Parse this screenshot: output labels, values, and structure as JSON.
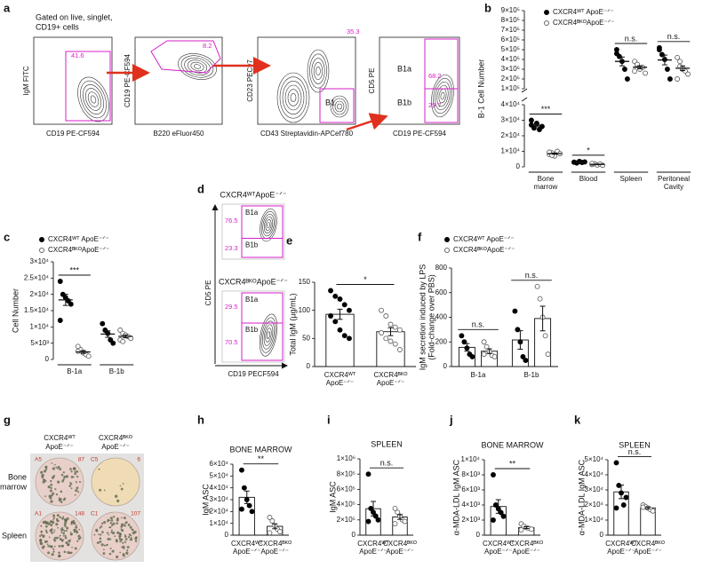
{
  "panel_labels": [
    "a",
    "b",
    "c",
    "d",
    "e",
    "f",
    "g",
    "h",
    "i",
    "j",
    "k"
  ],
  "flow_gating": {
    "note": [
      "Gated on live, singlet,",
      "CD19+ cells"
    ],
    "plots": [
      {
        "y_label": "IgM FITC",
        "x_label": "CD19 PE-CF594",
        "gates": [
          "41.6"
        ]
      },
      {
        "y_label": "CD19 PE-CF594",
        "x_label": "B220 eFluor450",
        "gates": [
          "8.2"
        ]
      },
      {
        "y_label": "CD23 PECy7",
        "x_label": "CD43 Streptavidin-APCef780",
        "gates": [
          "35.3",
          "B1"
        ]
      },
      {
        "y_label": "CD5 PE",
        "x_label": "CD19 PE-CF594",
        "gates": [
          "B1a",
          "68.2",
          "B1b",
          "29.7"
        ]
      }
    ]
  },
  "flow_cd5": {
    "y_label": "CD5 PE",
    "x_label": "CD19 PECF594",
    "plots": [
      {
        "title": "CXCR4ᵂᵀApoE⁻ᐟ⁻",
        "gates": [
          "B1a",
          "76.5",
          "B1b",
          "23.3"
        ]
      },
      {
        "title": "CXCR4ᴮᴷᴼApoE⁻ᐟ⁻",
        "gates": [
          "B1a",
          "29.5",
          "B1b",
          "70.5"
        ]
      }
    ]
  },
  "elispot": {
    "columns": [
      [
        "CXCR4ᵂᵀ",
        "ApoE⁻ᐟ⁻"
      ],
      [
        "CXCR4ᴮᴷᴼ",
        "ApoE⁻ᐟ⁻"
      ]
    ],
    "rows": [
      [
        "Bone",
        "marrow"
      ],
      [
        "Spleen"
      ]
    ],
    "wells": [
      [
        [
          "A5",
          "87"
        ],
        [
          "C5",
          "6"
        ]
      ],
      [
        [
          "A1",
          "148"
        ],
        [
          "C1",
          "107"
        ]
      ]
    ]
  },
  "chart_data": [
    {
      "type": "dotplot",
      "y_label": "B-1 Cell Number",
      "categories": [
        [
          "Bone",
          "marrow"
        ],
        [
          "Blood"
        ],
        [
          "Spleen"
        ],
        [
          "Peritoneal",
          "Cavity"
        ]
      ],
      "ylim": [
        0,
        40000
      ],
      "yticks": [
        0,
        {
          "value": 10000,
          "label": "1×10⁴"
        },
        {
          "value": 20000,
          "label": "2×10⁴"
        },
        {
          "value": 30000,
          "label": "3×10⁴"
        },
        {
          "value": 40000,
          "label": "4×10⁴"
        }
      ],
      "ylim_upper": [
        100000,
        900000
      ],
      "yticks_upper": [
        {
          "value": 100000,
          "label": "1×10⁵"
        },
        {
          "value": 200000,
          "label": "2×10⁵"
        },
        {
          "value": 300000,
          "label": "3×10⁵"
        },
        {
          "value": 400000,
          "label": "4×10⁵"
        },
        {
          "value": 500000,
          "label": "5×10⁵"
        },
        {
          "value": 600000,
          "label": "6×10⁵"
        },
        {
          "value": 700000,
          "label": "7×10⁵"
        },
        {
          "value": 800000,
          "label": "8×10⁵"
        },
        {
          "value": 900000,
          "label": "9×10⁵"
        }
      ],
      "legend": true,
      "series": [
        {
          "name": "CXCR4ᵂᵀ ApoE⁻ᐟ⁻",
          "marker": "filled",
          "values": [
            [
              27000,
              25000,
              28000,
              24000,
              26000,
              30000
            ],
            [
              3000,
              2500,
              3500,
              2800,
              3200
            ],
            [
              500000,
              430000,
              380000,
              300000,
              200000,
              460000
            ],
            [
              500000,
              450000,
              400000,
              300000,
              200000,
              520000
            ]
          ],
          "mean": [
            26700,
            3000,
            380000,
            395000
          ],
          "sem": [
            900,
            170,
            45000,
            50000
          ]
        },
        {
          "name": "CXCR4ᴮᴷᴼApoE⁻ᐟ⁻",
          "marker": "open",
          "values": [
            [
              8000,
              9000,
              7000,
              10000,
              8500,
              9500,
              7500
            ],
            [
              1500,
              2000,
              1200,
              1800,
              1000,
              2200
            ],
            [
              380000,
              340000,
              300000,
              320000,
              260000,
              280000,
              350000
            ],
            [
              420000,
              380000,
              300000,
              280000,
              250000,
              200000,
              330000,
              310000
            ]
          ],
          "mean": [
            8500,
            1600,
            320000,
            310000
          ],
          "sem": [
            400,
            190,
            16000,
            24000
          ]
        }
      ],
      "significance": [
        {
          "label": "***",
          "category": 0
        },
        {
          "label": "*",
          "category": 1
        },
        {
          "label": "n.s.",
          "category": 2
        },
        {
          "label": "n.s.",
          "category": 3
        }
      ]
    },
    {
      "type": "dotplot",
      "y_label": "Cell Number",
      "categories": [
        [
          "B-1a"
        ],
        [
          "B-1b"
        ]
      ],
      "ylim": [
        0,
        30000
      ],
      "yticks": [
        0,
        {
          "value": 5000,
          "label": "5×10³"
        },
        {
          "value": 10000,
          "label": "1×10⁴"
        },
        {
          "value": 15000,
          "label": "1.5×10⁴"
        },
        {
          "value": 20000,
          "label": "2×10⁴"
        },
        {
          "value": 25000,
          "label": "2.5×10⁴"
        },
        {
          "value": 30000,
          "label": "3×10⁴"
        }
      ],
      "legend": true,
      "series": [
        {
          "name": "CXCR4ᵂᵀ ApoE⁻ᐟ⁻",
          "marker": "filled",
          "values": [
            [
              24000,
              20000,
              19000,
              18000,
              17000,
              12000
            ],
            [
              11000,
              9000,
              8000,
              6000,
              5000
            ]
          ],
          "mean": [
            18300,
            7800
          ],
          "sem": [
            1700,
            1000
          ]
        },
        {
          "name": "CXCR4ᴮᴷᴼApoE⁻ᐟ⁻",
          "marker": "open",
          "values": [
            [
              4000,
              3000,
              2000,
              1500,
              1000,
              2500
            ],
            [
              9000,
              8000,
              7500,
              7000,
              6500,
              6000,
              5500
            ]
          ],
          "mean": [
            2300,
            7100
          ],
          "sem": [
            450,
            450
          ]
        }
      ],
      "significance": [
        {
          "label": "***",
          "category": 0
        }
      ]
    },
    {
      "type": "bar",
      "y_label": "Total IgM (µg/mL)",
      "categories": [
        [
          "CXCR4ᵂᵀ",
          "ApoE⁻ᐟ⁻"
        ],
        [
          "CXCR4ᴮᴷᴼ",
          "ApoE⁻ᐟ⁻"
        ]
      ],
      "ylim": [
        0,
        150
      ],
      "yticks": [
        0,
        50,
        100,
        150
      ],
      "series": [
        {
          "marker": [
            "filled",
            "open"
          ],
          "values": [
            [
              135,
              125,
              120,
              110,
              100,
              90,
              80,
              65,
              55,
              50
            ],
            [
              100,
              90,
              75,
              70,
              65,
              60,
              50,
              45,
              40,
              30
            ]
          ],
          "mean": [
            93,
            62
          ],
          "sem": [
            9,
            7
          ]
        }
      ],
      "significance": [
        {
          "label": "*"
        }
      ]
    },
    {
      "type": "bar",
      "y_label": [
        "IgM secretion induced by LPS",
        "(Fold-change over PBS)"
      ],
      "categories": [
        [
          "B-1a"
        ],
        [
          "B-1b"
        ]
      ],
      "ylim": [
        0,
        800
      ],
      "yticks": [
        0,
        200,
        400,
        600,
        800
      ],
      "legend": true,
      "series": [
        {
          "name": "CXCR4ᵂᵀ ApoE⁻ᐟ⁻",
          "marker": "filled",
          "values": [
            [
              250,
              200,
              150,
              100,
              80
            ],
            [
              450,
              300,
              200,
              80,
              50
            ]
          ],
          "mean": [
            156,
            216
          ],
          "sem": [
            31,
            75
          ]
        },
        {
          "name": "CXCR4ᴮᴷᴼApoE⁻ᐟ⁻",
          "marker": "open",
          "values": [
            [
              200,
              160,
              120,
              90,
              80,
              100
            ],
            [
              650,
              550,
              400,
              250,
              100
            ]
          ],
          "mean": [
            125,
            390
          ],
          "sem": [
            19,
            100
          ]
        }
      ],
      "significance": [
        {
          "label": "n.s.",
          "category": 0
        },
        {
          "label": "n.s.",
          "category": 1
        }
      ]
    },
    {
      "type": "bar",
      "title": "BONE MARROW",
      "y_label": "IgM ASC",
      "categories": [
        [
          "CXCR4ᵂᵀ",
          "ApoE⁻ᐟ⁻"
        ],
        [
          "CXCR4ᴮᴷᴼ",
          "ApoE⁻ᐟ⁻"
        ]
      ],
      "ylim": [
        0,
        60000
      ],
      "yticks": [
        0,
        {
          "value": 10000,
          "label": "1×10⁴"
        },
        {
          "value": 20000,
          "label": "2×10⁴"
        },
        {
          "value": 30000,
          "label": "3×10⁴"
        },
        {
          "value": 40000,
          "label": "4×10⁴"
        },
        {
          "value": 50000,
          "label": "5×10⁴"
        },
        {
          "value": 60000,
          "label": "6×10⁴"
        }
      ],
      "series": [
        {
          "marker": [
            "filled",
            "open"
          ],
          "values": [
            [
              55000,
              40000,
              30000,
              25000,
              20000,
              22000
            ],
            [
              15000,
              12000,
              8000,
              5000,
              3000,
              2000
            ]
          ],
          "mean": [
            32000,
            7500
          ],
          "sem": [
            5300,
            2100
          ]
        }
      ],
      "significance": [
        {
          "label": "**"
        }
      ]
    },
    {
      "type": "bar",
      "title": "SPLEEN",
      "y_label": "IgM ASC",
      "categories": [
        [
          "CXCR4ᵂᵀ",
          "ApoE⁻ᐟ⁻"
        ],
        [
          "CXCR4ᴮᴷᴼ",
          "ApoE⁻ᐟ⁻"
        ]
      ],
      "ylim": [
        0,
        1000000
      ],
      "yticks": [
        0,
        {
          "value": 200000,
          "label": "2×10⁵"
        },
        {
          "value": 400000,
          "label": "4×10⁵"
        },
        {
          "value": 600000,
          "label": "6×10⁵"
        },
        {
          "value": 800000,
          "label": "8×10⁵"
        },
        {
          "value": 1000000,
          "label": "1×10⁶"
        }
      ],
      "series": [
        {
          "marker": [
            "filled",
            "open"
          ],
          "values": [
            [
              800000,
              350000,
              300000,
              250000,
              200000,
              180000
            ],
            [
              350000,
              300000,
              250000,
              200000,
              180000,
              150000
            ]
          ],
          "mean": [
            347000,
            238000
          ],
          "sem": [
            95000,
            31000
          ]
        }
      ],
      "significance": [
        {
          "label": "n.s."
        }
      ]
    },
    {
      "type": "bar",
      "title": "BONE MARROW",
      "y_label": "α-MDA-LDL IgM ASC",
      "categories": [
        [
          "CXCR4ᵂᵀ",
          "ApoE⁻ᐟ⁻"
        ],
        [
          "CXCR4ᴮᴷᴼ",
          "ApoE⁻ᐟ⁻"
        ]
      ],
      "ylim": [
        0,
        10000
      ],
      "yticks": [
        0,
        {
          "value": 2000,
          "label": "2×10³"
        },
        {
          "value": 4000,
          "label": "4×10³"
        },
        {
          "value": 6000,
          "label": "6×10³"
        },
        {
          "value": 8000,
          "label": "8×10³"
        },
        {
          "value": 10000,
          "label": "1×10⁴"
        }
      ],
      "series": [
        {
          "marker": [
            "filled",
            "open"
          ],
          "values": [
            [
              8000,
              4000,
              3500,
              3000,
              2500,
              2000
            ],
            [
              1500,
              1200,
              1000,
              900,
              800,
              700
            ]
          ],
          "mean": [
            3800,
            1000
          ],
          "sem": [
            900,
            120
          ]
        }
      ],
      "significance": [
        {
          "label": "**"
        }
      ]
    },
    {
      "type": "bar",
      "title": "SPLEEN",
      "y_label": "α-MDA-LDL IgM ASC",
      "categories": [
        [
          "CXCR4ᵂᵀ",
          "ApoE⁻ᐟ⁻"
        ],
        [
          "CXCR4ᴮᴷᴼ",
          "ApoE⁻ᐟ⁻"
        ]
      ],
      "ylim": [
        0,
        50000
      ],
      "yticks": [
        0,
        {
          "value": 10000,
          "label": "1×10⁴"
        },
        {
          "value": 20000,
          "label": "2×10⁴"
        },
        {
          "value": 30000,
          "label": "3×10⁴"
        },
        {
          "value": 40000,
          "label": "4×10⁴"
        },
        {
          "value": 50000,
          "label": "5×10⁴"
        }
      ],
      "series": [
        {
          "marker": [
            "filled",
            "open"
          ],
          "values": [
            [
              48000,
              33000,
              28000,
              20000,
              25000,
              18000
            ],
            [
              20000,
              19000,
              18000,
              17000,
              16000,
              18500
            ]
          ],
          "mean": [
            28700,
            18100
          ],
          "sem": [
            4500,
            600
          ]
        }
      ],
      "significance": [
        {
          "label": "n.s."
        }
      ]
    }
  ]
}
